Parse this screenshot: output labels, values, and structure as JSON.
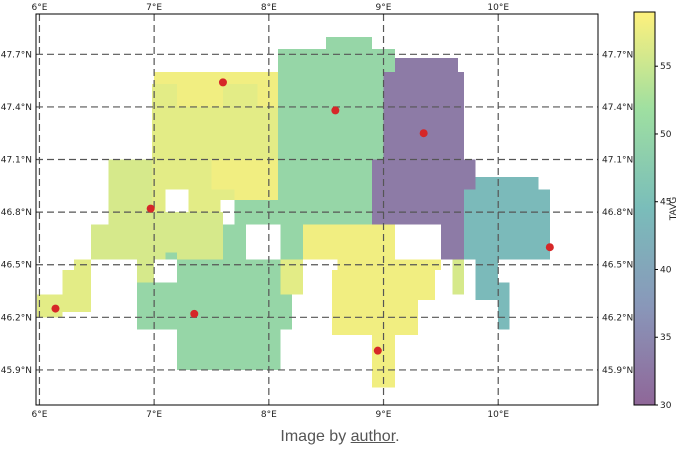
{
  "caption": {
    "prefix": "Image by ",
    "link_text": "author",
    "suffix": "."
  },
  "chart_data": {
    "type": "heatmap",
    "title": "",
    "xlabel": "",
    "ylabel": "",
    "x_ticks": [
      {
        "value": 6.0,
        "label": "6°E"
      },
      {
        "value": 7.0,
        "label": "7°E"
      },
      {
        "value": 8.0,
        "label": "8°E"
      },
      {
        "value": 9.0,
        "label": "9°E"
      },
      {
        "value": 10.0,
        "label": "10°E"
      }
    ],
    "y_ticks": [
      {
        "value": 45.9,
        "label": "45.9°N"
      },
      {
        "value": 46.2,
        "label": "46.2°N"
      },
      {
        "value": 46.5,
        "label": "46.5°N"
      },
      {
        "value": 46.8,
        "label": "46.8°N"
      },
      {
        "value": 47.1,
        "label": "47.1°N"
      },
      {
        "value": 47.4,
        "label": "47.4°N"
      },
      {
        "value": 47.7,
        "label": "47.7°N"
      }
    ],
    "xlim": [
      5.97,
      10.87
    ],
    "ylim": [
      45.7,
      47.93
    ],
    "grid": true,
    "grid_style": "dashed",
    "colorbar": {
      "label": "TAVG",
      "min": 30,
      "max": 59,
      "ticks": [
        30,
        35,
        40,
        45,
        50,
        55
      ],
      "colormap": "viridis",
      "alpha": 0.6
    },
    "cell_size_deg": {
      "dx": 0.1,
      "dy": 0.067
    },
    "regions": [
      {
        "name": "",
        "value": 57,
        "rects": [
          [
            6.98,
            7.1,
            46.8,
            47.53
          ],
          [
            7.1,
            8.08,
            46.93,
            47.53
          ],
          [
            7.3,
            7.58,
            46.8,
            46.93
          ],
          [
            7.58,
            7.85,
            46.87,
            46.93
          ],
          [
            7.58,
            7.7,
            47.53,
            47.6
          ],
          [
            8.08,
            8.3,
            46.33,
            46.53
          ],
          [
            8.3,
            8.55,
            46.53,
            46.6
          ],
          [
            6.2,
            6.45,
            46.23,
            46.47
          ],
          [
            6.3,
            6.45,
            46.47,
            46.53
          ],
          [
            5.98,
            6.2,
            46.2,
            46.33
          ]
        ]
      },
      {
        "name": "",
        "value": 58,
        "rects": [
          [
            7.2,
            7.6,
            47.4,
            47.53
          ],
          [
            7.9,
            8.08,
            47.4,
            47.6
          ],
          [
            7.2,
            8.08,
            47.53,
            47.6
          ],
          [
            7.5,
            8.1,
            46.93,
            47.1
          ],
          [
            7.7,
            8.1,
            46.87,
            46.93
          ],
          [
            7.0,
            7.2,
            47.53,
            47.6
          ],
          [
            8.3,
            9.1,
            46.53,
            46.73
          ],
          [
            8.6,
            9.1,
            46.47,
            46.53
          ],
          [
            8.55,
            9.3,
            46.1,
            46.47
          ],
          [
            8.9,
            9.1,
            45.8,
            46.1
          ],
          [
            9.1,
            9.5,
            46.47,
            46.53
          ],
          [
            9.3,
            9.45,
            46.3,
            46.47
          ]
        ]
      },
      {
        "name": "",
        "value": 56,
        "rects": [
          [
            6.45,
            7.7,
            46.53,
            46.73
          ],
          [
            6.8,
            7.6,
            46.73,
            46.8
          ],
          [
            6.6,
            6.98,
            46.73,
            47.1
          ],
          [
            6.45,
            6.6,
            46.6,
            46.73
          ],
          [
            6.85,
            7.0,
            46.33,
            46.53
          ],
          [
            9.6,
            9.7,
            46.33,
            46.53
          ]
        ]
      },
      {
        "name": "",
        "value": 50,
        "rects": [
          [
            8.08,
            9.0,
            46.73,
            47.73
          ],
          [
            8.1,
            8.3,
            46.53,
            46.73
          ],
          [
            8.5,
            8.9,
            47.73,
            47.8
          ],
          [
            9.0,
            9.1,
            47.6,
            47.73
          ],
          [
            7.2,
            8.1,
            45.9,
            46.53
          ],
          [
            6.85,
            7.2,
            46.2,
            46.4
          ],
          [
            6.85,
            7.5,
            46.13,
            46.2
          ],
          [
            7.1,
            7.2,
            46.53,
            46.57
          ],
          [
            7.7,
            8.1,
            46.73,
            46.87
          ],
          [
            7.6,
            7.8,
            46.53,
            46.73
          ],
          [
            8.1,
            8.2,
            46.13,
            46.33
          ]
        ]
      },
      {
        "name": "",
        "value": 33,
        "rects": [
          [
            9.0,
            9.7,
            47.1,
            47.6
          ],
          [
            9.1,
            9.65,
            47.6,
            47.68
          ],
          [
            8.9,
            9.8,
            46.8,
            47.1
          ],
          [
            8.9,
            9.7,
            46.73,
            46.8
          ],
          [
            9.5,
            9.7,
            46.53,
            46.73
          ],
          [
            9.7,
            9.8,
            46.8,
            46.87
          ]
        ]
      },
      {
        "name": "",
        "value": 44,
        "rects": [
          [
            9.7,
            10.35,
            46.53,
            46.93
          ],
          [
            9.8,
            10.35,
            46.93,
            47.0
          ],
          [
            9.9,
            10.0,
            46.33,
            46.53
          ],
          [
            10.0,
            10.1,
            46.13,
            46.4
          ],
          [
            10.35,
            10.45,
            46.53,
            46.93
          ],
          [
            9.8,
            10.0,
            46.3,
            46.53
          ]
        ]
      }
    ],
    "stations": [
      {
        "lon": 6.14,
        "lat": 46.25
      },
      {
        "lon": 6.97,
        "lat": 46.82
      },
      {
        "lon": 7.35,
        "lat": 46.22
      },
      {
        "lon": 7.6,
        "lat": 47.54
      },
      {
        "lon": 8.58,
        "lat": 47.38
      },
      {
        "lon": 9.35,
        "lat": 47.25
      },
      {
        "lon": 8.95,
        "lat": 46.01
      },
      {
        "lon": 10.45,
        "lat": 46.6
      }
    ],
    "station_color": "#d62728"
  }
}
